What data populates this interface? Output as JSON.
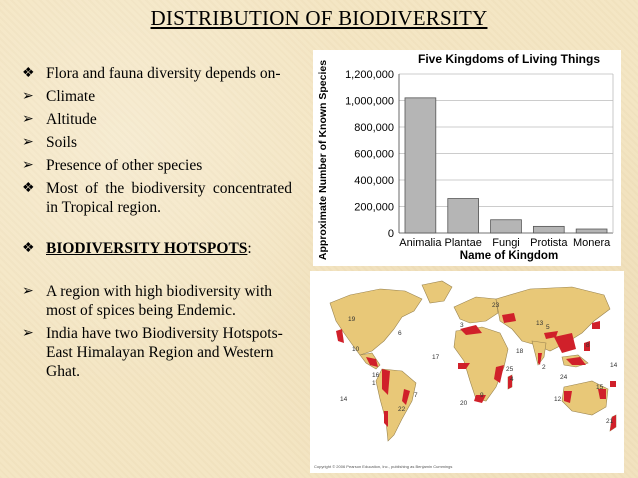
{
  "slide": {
    "title": "DISTRIBUTION OF BIODIVERSITY",
    "bullets": [
      {
        "marker": "❖",
        "text": "Flora and fauna diversity depends on-"
      },
      {
        "marker": "➢",
        "text": "Climate"
      },
      {
        "marker": "➢",
        "text": "Altitude"
      },
      {
        "marker": "➢",
        "text": "Soils"
      },
      {
        "marker": "➢",
        "text": "Presence of other species"
      },
      {
        "marker": "❖",
        "text": "Most of the biodiversity concentrated in Tropical region."
      }
    ],
    "hotspots_heading": "BIODIVERSITY HOTSPOTS",
    "hotspots_colon": ":",
    "hotspot_bullets": [
      {
        "marker": "➢",
        "text": "A region with high biodiversity with most of spices being Endemic."
      },
      {
        "marker": "➢",
        "text": "India have two Biodiversity Hotspots- East Himalayan Region and Western Ghat."
      }
    ]
  },
  "chart_data": {
    "type": "bar",
    "title": "Five Kingdoms of Living Things",
    "xlabel": "Name of Kingdom",
    "ylabel": "Approximate Number of Known Species",
    "categories": [
      "Animalia",
      "Plantae",
      "Fungi",
      "Protista",
      "Monera"
    ],
    "values": [
      1020000,
      260000,
      100000,
      50000,
      30000
    ],
    "ylim": [
      0,
      1200000
    ],
    "yticks": [
      0,
      200000,
      400000,
      600000,
      800000,
      1000000,
      1200000
    ],
    "ytick_labels": [
      "0",
      "200,000",
      "400,000",
      "600,000",
      "800,000",
      "1,000,000",
      "1,200,000"
    ],
    "grid": true,
    "bar_color": "#b5b5b5"
  },
  "map": {
    "hotspot_color": "#d0202a",
    "labels": [
      "1",
      "2",
      "3",
      "4",
      "5",
      "6",
      "7",
      "8",
      "9",
      "10",
      "11",
      "12",
      "13",
      "14",
      "15",
      "16",
      "17",
      "18",
      "19",
      "20",
      "21",
      "22",
      "23",
      "24",
      "25"
    ],
    "copyright": "Copyright © 2006 Pearson Education, Inc., publishing as Benjamin Cummings"
  }
}
